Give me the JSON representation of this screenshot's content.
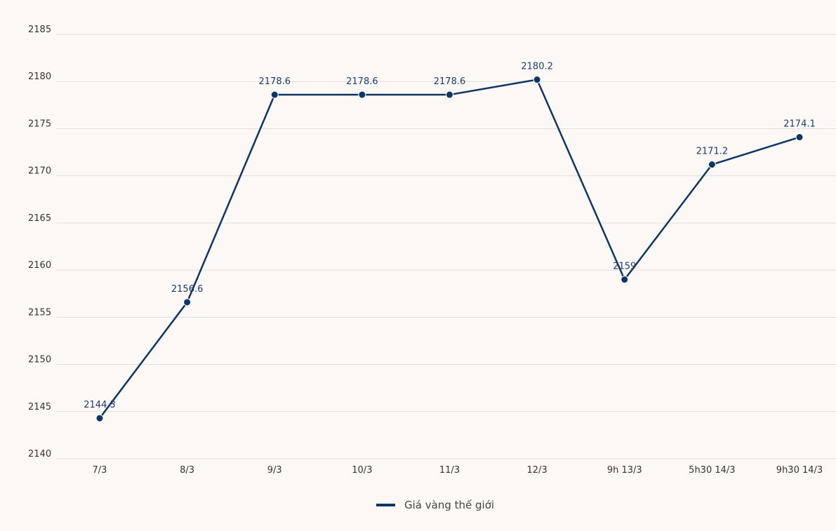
{
  "chart_data": {
    "type": "line",
    "categories": [
      "7/3",
      "8/3",
      "9/3",
      "10/3",
      "11/3",
      "12/3",
      "9h 13/3",
      "5h30 14/3",
      "9h30 14/3"
    ],
    "series": [
      {
        "name": "Giá vàng thế giới",
        "values": [
          2144.3,
          2156.6,
          2178.6,
          2178.6,
          2178.6,
          2180.2,
          2159,
          2171.2,
          2174.1
        ],
        "labels": [
          "2144.3",
          "2156.6",
          "2178.6",
          "2178.6",
          "2178.6",
          "2180.2",
          "2159",
          "2171.2",
          "2174.1"
        ]
      }
    ],
    "yticks": [
      "2140",
      "2145",
      "2150",
      "2155",
      "2160",
      "2165",
      "2170",
      "2175",
      "2180",
      "2185"
    ],
    "ylim": [
      2140,
      2185
    ],
    "grid": true,
    "legend_position": "bottom-center",
    "colors": {
      "line": "#0f3466",
      "grid": "#e2ddd9",
      "background": "#fcf8f5"
    }
  }
}
